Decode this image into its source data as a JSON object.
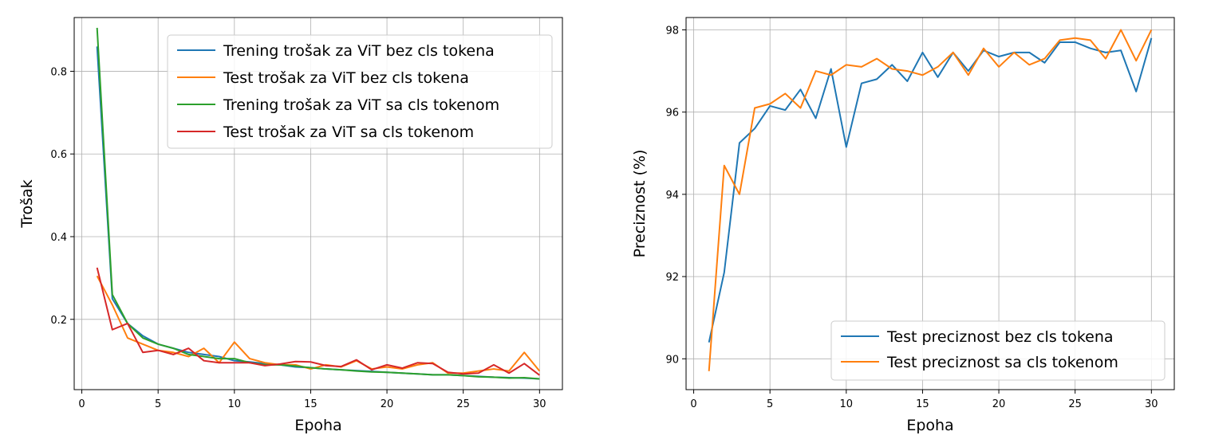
{
  "colors": {
    "blue": "#1f77b4",
    "orange": "#ff7f0e",
    "green": "#2ca02c",
    "red": "#d62728",
    "grid": "#b0b0b0"
  },
  "chart_data": [
    {
      "type": "line",
      "xlabel": "Epoha",
      "ylabel": "Trošak",
      "xlim": [
        -0.5,
        31.5
      ],
      "ylim": [
        0.03,
        0.93
      ],
      "xticks": [
        0,
        5,
        10,
        15,
        20,
        25,
        30
      ],
      "yticks": [
        0.2,
        0.4,
        0.6,
        0.8
      ],
      "ytick_labels": [
        "0.2",
        "0.4",
        "0.6",
        "0.8"
      ],
      "grid": true,
      "legend_position": "top-right",
      "x": [
        1,
        2,
        3,
        4,
        5,
        6,
        7,
        8,
        9,
        10,
        11,
        12,
        13,
        14,
        15,
        16,
        17,
        18,
        19,
        20,
        21,
        22,
        23,
        24,
        25,
        26,
        27,
        28,
        29,
        30
      ],
      "series": [
        {
          "name": "Trening trošak za ViT bez cls tokena",
          "color": "#1f77b4",
          "values": [
            0.86,
            0.25,
            0.19,
            0.16,
            0.14,
            0.13,
            0.12,
            0.115,
            0.11,
            0.1,
            0.097,
            0.093,
            0.09,
            0.085,
            0.083,
            0.08,
            0.078,
            0.076,
            0.074,
            0.072,
            0.07,
            0.068,
            0.066,
            0.066,
            0.064,
            0.062,
            0.06,
            0.059,
            0.058,
            0.056
          ]
        },
        {
          "name": "Test trošak za ViT bez cls tokena",
          "color": "#ff7f0e",
          "values": [
            0.305,
            0.235,
            0.155,
            0.14,
            0.125,
            0.12,
            0.11,
            0.13,
            0.095,
            0.145,
            0.105,
            0.095,
            0.09,
            0.09,
            0.08,
            0.09,
            0.085,
            0.1,
            0.08,
            0.085,
            0.08,
            0.09,
            0.095,
            0.07,
            0.07,
            0.075,
            0.08,
            0.075,
            0.12,
            0.075
          ]
        },
        {
          "name": "Trening trošak za ViT sa cls tokenom",
          "color": "#2ca02c",
          "values": [
            0.905,
            0.26,
            0.19,
            0.155,
            0.14,
            0.13,
            0.115,
            0.11,
            0.105,
            0.105,
            0.095,
            0.09,
            0.09,
            0.087,
            0.083,
            0.08,
            0.078,
            0.075,
            0.073,
            0.072,
            0.07,
            0.068,
            0.066,
            0.066,
            0.064,
            0.061,
            0.06,
            0.058,
            0.059,
            0.056
          ]
        },
        {
          "name": "Test trošak za ViT sa cls tokenom",
          "color": "#d62728",
          "values": [
            0.325,
            0.175,
            0.19,
            0.12,
            0.125,
            0.115,
            0.13,
            0.1,
            0.095,
            0.095,
            0.095,
            0.088,
            0.092,
            0.098,
            0.097,
            0.088,
            0.086,
            0.102,
            0.078,
            0.09,
            0.082,
            0.095,
            0.093,
            0.072,
            0.068,
            0.07,
            0.09,
            0.07,
            0.093,
            0.065
          ]
        }
      ]
    },
    {
      "type": "line",
      "xlabel": "Epoha",
      "ylabel": "Preciznost (%)",
      "xlim": [
        -0.5,
        31.5
      ],
      "ylim": [
        89.25,
        98.3
      ],
      "xticks": [
        0,
        5,
        10,
        15,
        20,
        25,
        30
      ],
      "yticks": [
        90,
        92,
        94,
        96,
        98
      ],
      "ytick_labels": [
        "90",
        "92",
        "94",
        "96",
        "98"
      ],
      "grid": true,
      "legend_position": "bottom-right",
      "x": [
        1,
        2,
        3,
        4,
        5,
        6,
        7,
        8,
        9,
        10,
        11,
        12,
        13,
        14,
        15,
        16,
        17,
        18,
        19,
        20,
        21,
        22,
        23,
        24,
        25,
        26,
        27,
        28,
        29,
        30
      ],
      "series": [
        {
          "name": "Test preciznost bez cls tokena",
          "color": "#1f77b4",
          "values": [
            90.4,
            92.1,
            95.25,
            95.6,
            96.15,
            96.05,
            96.55,
            95.85,
            97.05,
            95.15,
            96.7,
            96.8,
            97.15,
            96.75,
            97.45,
            96.85,
            97.45,
            97.0,
            97.5,
            97.35,
            97.45,
            97.45,
            97.2,
            97.7,
            97.7,
            97.55,
            97.45,
            97.5,
            96.5,
            97.8
          ]
        },
        {
          "name": "Test preciznost sa cls tokenom",
          "color": "#ff7f0e",
          "values": [
            89.7,
            94.7,
            94.0,
            96.1,
            96.2,
            96.45,
            96.1,
            97.0,
            96.9,
            97.15,
            97.1,
            97.3,
            97.05,
            97.0,
            96.9,
            97.1,
            97.45,
            96.9,
            97.55,
            97.1,
            97.45,
            97.15,
            97.3,
            97.75,
            97.8,
            97.75,
            97.3,
            98.0,
            97.25,
            98.0
          ]
        }
      ]
    }
  ]
}
